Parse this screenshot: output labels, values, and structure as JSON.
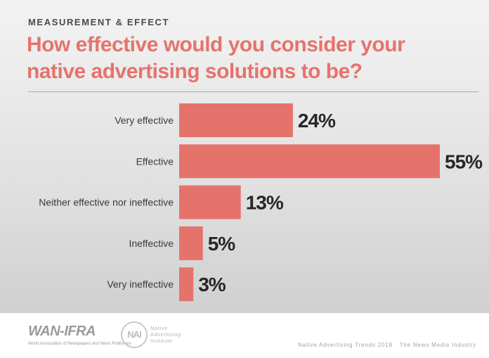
{
  "header": {
    "eyebrow": "MEASUREMENT & EFFECT",
    "title_line1": "How effective would you consider your",
    "title_line2": "native advertising solutions to be?"
  },
  "chart_data": {
    "type": "bar",
    "orientation": "horizontal",
    "categories": [
      "Very effective",
      "Effective",
      "Neither effective nor ineffective",
      "Ineffective",
      "Very ineffective"
    ],
    "values": [
      24,
      55,
      13,
      5,
      3
    ],
    "value_labels": [
      "24%",
      "55%",
      "13%",
      "5%",
      "3%"
    ],
    "title": "How effective would you consider your native advertising solutions to be?",
    "xlim": [
      0,
      55
    ],
    "grid": false,
    "legend": "none",
    "bar_color": "#e5736c"
  },
  "footer": {
    "logo1_text": "WAN-IFRA",
    "logo1_sub": "World Association of Newspapers and News Publishers",
    "logo2_mark": "NAI",
    "logo2_text": "Native\nAdvertising\nInstitute",
    "source_report": "Native Advertising Trends 2018",
    "source_sub": "The News Media Industry"
  },
  "colors": {
    "accent": "#e5736c",
    "background_top": "#f3f3f3",
    "background_bottom": "#d0d0d0"
  }
}
